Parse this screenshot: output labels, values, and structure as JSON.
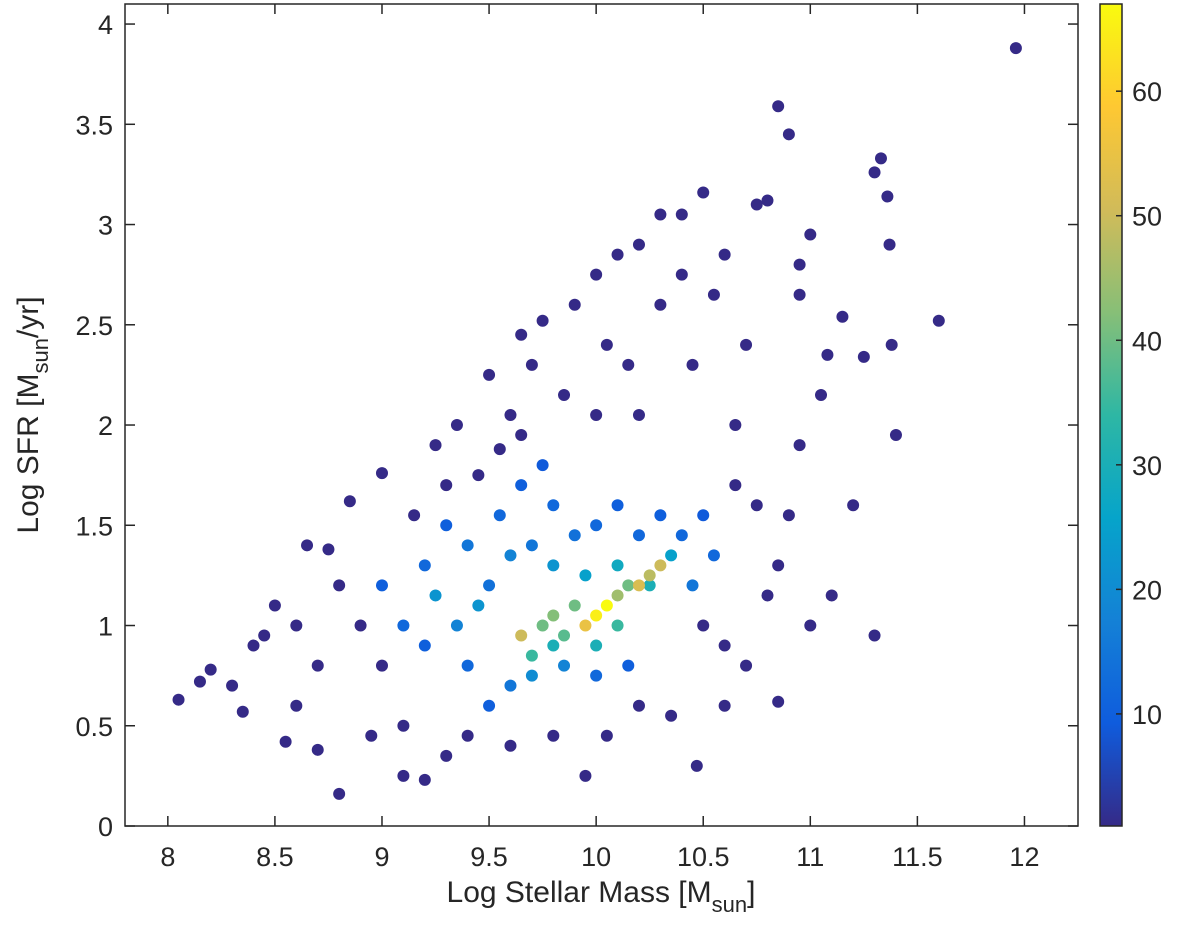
{
  "chart_data": {
    "type": "scatter",
    "x_label": {
      "text": "Log Stellar Mass [M",
      "sub": "sun",
      "end": "]"
    },
    "y_label": {
      "text": "Log SFR [M",
      "sub": "sun",
      "end": "/yr]"
    },
    "xlim": [
      7.8,
      12.25
    ],
    "ylim": [
      0,
      4.1
    ],
    "xticks": [
      8,
      8.5,
      9,
      9.5,
      10,
      10.5,
      11,
      11.5,
      12
    ],
    "yticks": [
      0,
      0.5,
      1,
      1.5,
      2,
      2.5,
      3,
      3.5,
      4
    ],
    "clim": [
      1,
      67
    ],
    "cticks": [
      10,
      20,
      30,
      40,
      50,
      60
    ],
    "colormap": [
      "#352a87",
      "#0f5cdd",
      "#1481d6",
      "#06a4ca",
      "#2eb7a4",
      "#87bf77",
      "#d1bb59",
      "#fec832",
      "#f9fb0e"
    ],
    "x": [
      8.05,
      8.15,
      8.2,
      8.3,
      8.35,
      8.4,
      8.5,
      8.55,
      8.6,
      8.65,
      8.7,
      8.8,
      8.75,
      8.85,
      8.95,
      9.0,
      9.1,
      9.2,
      9.25,
      9.35,
      9.5,
      9.55,
      9.7,
      9.75,
      9.9,
      9.95,
      10.0,
      10.05,
      10.1,
      10.2,
      10.3,
      10.4,
      10.5,
      10.55,
      10.6,
      10.7,
      10.75,
      10.8,
      10.85,
      10.9,
      10.95,
      11.0,
      10.47,
      10.85,
      11.0,
      11.1,
      11.15,
      11.2,
      11.25,
      11.3,
      11.33,
      11.36,
      11.37,
      11.38,
      11.4,
      11.3,
      11.6,
      11.96,
      10.95,
      11.05,
      10.65,
      10.3,
      10.45,
      10.15,
      9.85,
      9.65,
      10.8,
      10.7,
      10.9,
      10.6,
      10.35,
      10.2,
      10.05,
      9.8,
      9.6,
      9.4,
      9.3,
      9.1,
      9.0,
      8.9,
      8.8,
      8.7,
      8.6,
      8.45,
      9.15,
      9.3,
      9.45,
      10.65,
      10.75,
      10.85,
      10.5,
      10.6,
      11.08,
      10.95,
      10.4,
      10.2,
      10.0,
      9.6,
      9.65,
      9.0,
      9.1,
      9.2,
      9.3,
      9.4,
      9.5,
      9.55,
      9.65,
      9.75,
      9.8,
      9.9,
      10.0,
      10.1,
      10.2,
      10.3,
      10.4,
      10.5,
      10.55,
      10.45,
      9.5,
      9.6,
      9.7,
      9.85,
      10.0,
      10.15,
      9.4,
      9.35,
      9.2,
      9.45,
      9.25,
      9.6,
      9.7,
      9.8,
      9.95,
      10.1,
      10.25,
      10.35,
      9.7,
      9.8,
      10.0,
      10.1,
      9.75,
      9.8,
      9.85,
      9.9,
      10.15,
      10.25,
      10.3,
      9.65,
      10.2,
      9.95,
      10.1,
      10.0,
      10.05
    ],
    "y": [
      0.63,
      0.72,
      0.78,
      0.7,
      0.57,
      0.9,
      1.1,
      0.42,
      0.6,
      1.4,
      0.38,
      0.16,
      1.38,
      1.62,
      0.45,
      1.76,
      0.25,
      0.23,
      1.9,
      2.0,
      2.25,
      1.88,
      2.3,
      2.52,
      2.6,
      0.25,
      2.75,
      2.4,
      2.85,
      2.9,
      3.05,
      3.05,
      3.16,
      2.65,
      2.85,
      2.4,
      3.1,
      3.12,
      3.59,
      3.45,
      2.8,
      2.95,
      0.3,
      0.62,
      1.0,
      1.15,
      2.54,
      1.6,
      2.34,
      3.26,
      3.33,
      3.14,
      2.9,
      2.4,
      1.95,
      0.95,
      2.52,
      3.88,
      1.9,
      2.15,
      2.0,
      2.6,
      2.3,
      2.3,
      2.15,
      2.45,
      1.15,
      0.8,
      1.55,
      0.6,
      0.55,
      0.6,
      0.45,
      0.45,
      0.4,
      0.45,
      0.35,
      0.5,
      0.8,
      1.0,
      1.2,
      0.8,
      1.0,
      0.95,
      1.55,
      1.7,
      1.75,
      1.7,
      1.6,
      1.3,
      1.0,
      0.9,
      2.35,
      2.65,
      2.75,
      2.05,
      2.05,
      2.05,
      1.95,
      1.2,
      1.0,
      1.3,
      1.5,
      1.4,
      1.2,
      1.55,
      1.7,
      1.8,
      1.6,
      1.45,
      1.5,
      1.6,
      1.45,
      1.55,
      1.45,
      1.55,
      1.35,
      1.2,
      0.6,
      0.7,
      0.75,
      0.8,
      0.75,
      0.8,
      0.8,
      1.0,
      0.9,
      1.1,
      1.15,
      1.35,
      1.4,
      1.3,
      1.25,
      1.3,
      1.2,
      1.35,
      0.85,
      0.9,
      0.9,
      1.0,
      1.0,
      1.05,
      0.95,
      1.1,
      1.2,
      1.25,
      1.3,
      0.95,
      1.2,
      1.0,
      1.15,
      1.05,
      1.1
    ],
    "c": [
      1,
      1,
      1,
      1,
      1,
      1,
      1,
      1,
      1,
      1,
      1,
      1,
      1,
      1,
      1,
      1,
      1,
      1,
      1,
      1,
      1,
      1,
      1,
      1,
      1,
      1,
      1,
      1,
      1,
      1,
      1,
      1,
      1,
      1,
      1,
      1,
      1,
      1,
      1,
      1,
      1,
      1,
      1,
      1,
      1,
      1,
      1,
      1,
      1,
      1,
      1,
      1,
      1,
      1,
      1,
      1,
      1,
      1,
      1,
      1,
      1,
      1,
      1,
      1,
      1,
      1,
      1,
      1,
      1,
      1,
      1,
      1,
      1,
      1,
      1,
      1,
      1,
      1,
      1,
      1,
      1,
      1,
      1,
      1,
      1,
      1,
      1,
      1,
      1,
      1,
      1,
      1,
      1,
      1,
      1,
      1,
      1,
      1,
      1,
      10,
      12,
      12,
      10,
      15,
      14,
      12,
      10,
      9,
      12,
      14,
      12,
      10,
      12,
      10,
      12,
      9,
      12,
      15,
      10,
      15,
      20,
      18,
      12,
      10,
      12,
      18,
      10,
      22,
      22,
      18,
      15,
      22,
      25,
      28,
      30,
      25,
      35,
      30,
      30,
      35,
      40,
      42,
      38,
      40,
      40,
      48,
      50,
      50,
      52,
      55,
      45,
      65,
      67
    ]
  }
}
